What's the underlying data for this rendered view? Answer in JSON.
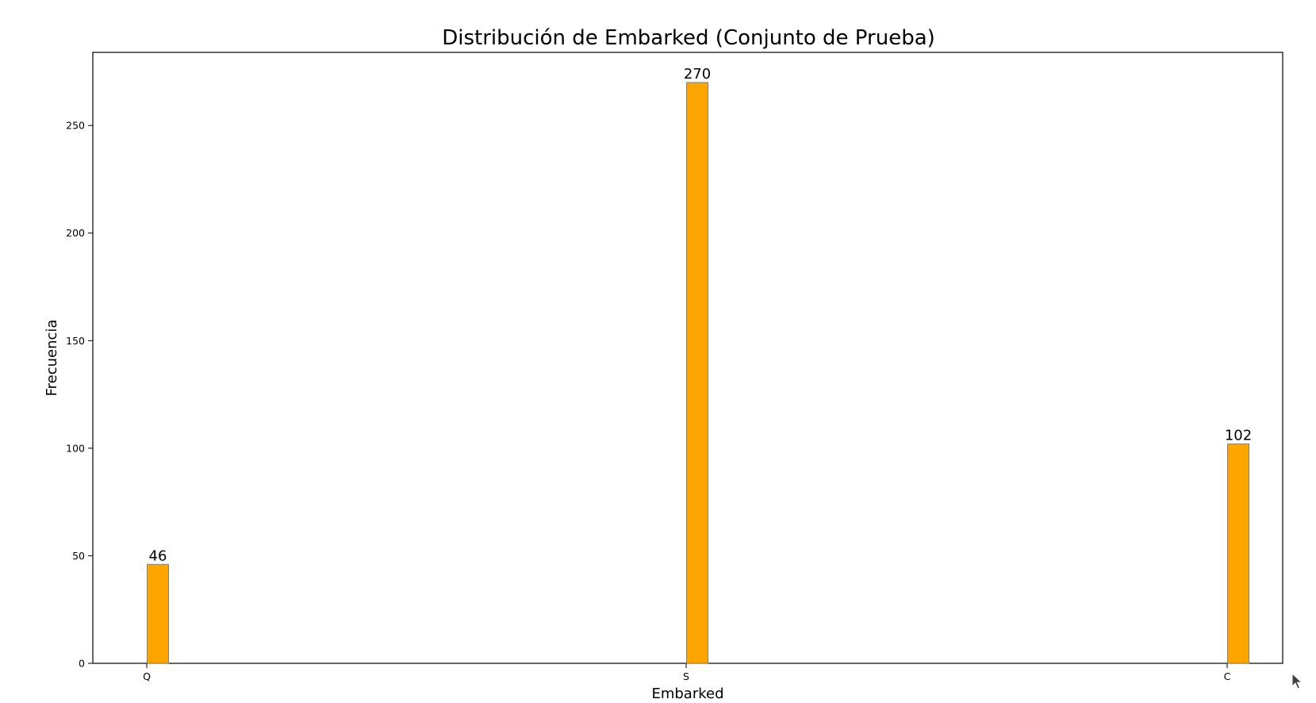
{
  "chart_data": {
    "type": "bar",
    "title": "Distribución de Embarked (Conjunto de Prueba)",
    "xlabel": "Embarked",
    "ylabel": "Frecuencia",
    "categories": [
      "Q",
      "S",
      "C"
    ],
    "values": [
      46,
      270,
      102
    ],
    "ylim": [
      0,
      284
    ],
    "yticks": [
      0,
      50,
      100,
      150,
      200,
      250
    ],
    "grid": false,
    "legend": "none",
    "bar_color": "#FFA500",
    "bar_edge_color": "#808080",
    "data_labels": [
      "46",
      "270",
      "102"
    ]
  }
}
